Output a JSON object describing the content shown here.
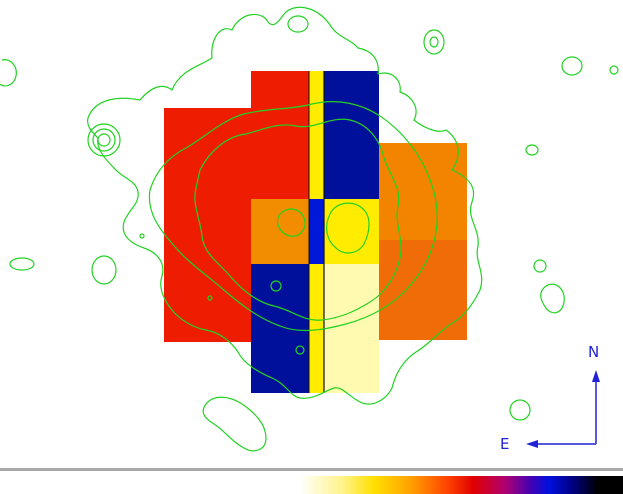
{
  "compass": {
    "north": "N",
    "east": "E"
  },
  "colors": {
    "red": "#ee1c00",
    "dark_orange": "#f06c08",
    "orange": "#f28c00",
    "navy": "#00109a",
    "blue": "#0018d8",
    "yellow": "#ffec00",
    "pale_yellow": "#fffab0",
    "contour": "#22d222",
    "axis_arrow": "#1f22d6"
  },
  "colorbar": [
    "#ffffff",
    "#fff38a",
    "#ffe000",
    "#ffa000",
    "#ff4000",
    "#e00000",
    "#b00070",
    "#4a00b0",
    "#0010e0",
    "#000080",
    "#000000"
  ]
}
